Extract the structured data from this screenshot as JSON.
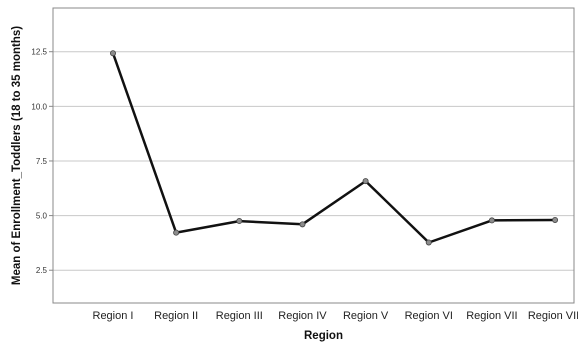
{
  "chart_data": {
    "type": "line",
    "title": "",
    "xlabel": "Region",
    "ylabel": "Mean of Enrollment_Toddlers (18 to 35 months)",
    "categories": [
      "Region I",
      "Region II",
      "Region III",
      "Region IV",
      "Region V",
      "Region VI",
      "Region VII",
      "Region VIII"
    ],
    "values": [
      12.43,
      4.22,
      4.75,
      4.6,
      6.58,
      3.77,
      4.78,
      4.8
    ],
    "ylim": [
      1.0,
      14.5
    ],
    "yticks": [
      "2.5",
      "5.0",
      "7.5",
      "10.0",
      "12.5"
    ],
    "grid": "horizontal",
    "legend": "none",
    "colors": {
      "line": "#111111",
      "marker_fill": "#8c8c8c",
      "grid": "#c8c8c8",
      "frame": "#888888"
    }
  }
}
